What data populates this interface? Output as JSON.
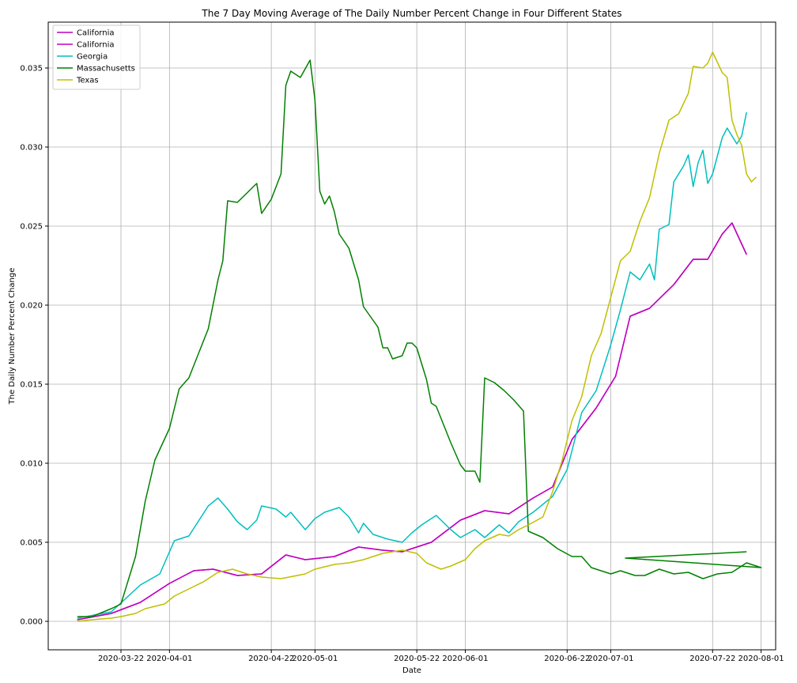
{
  "chart_data": {
    "type": "line",
    "title": "The 7 Day Moving Average of The Daily Number Percent Change in Four Different States",
    "xlabel": "Date",
    "ylabel": "The Daily Number Percent Change",
    "xlim": [
      "2020-03-07",
      "2020-08-04"
    ],
    "ylim": [
      -0.0018,
      0.0379
    ],
    "grid": true,
    "legend_position": "top-left",
    "x_ticks": [
      "2020-03-22",
      "2020-04-01",
      "2020-04-22",
      "2020-05-01",
      "2020-05-22",
      "2020-06-01",
      "2020-06-22",
      "2020-07-01",
      "2020-07-22",
      "2020-08-01"
    ],
    "y_ticks": [
      "0.000",
      "0.005",
      "0.010",
      "0.015",
      "0.020",
      "0.025",
      "0.030",
      "0.035"
    ],
    "series": [
      {
        "name": "California",
        "color": "#bf00bf",
        "points": [
          [
            "2020-03-13",
            0.0001
          ],
          [
            "2020-03-20",
            0.0005
          ],
          [
            "2020-03-26",
            0.0012
          ],
          [
            "2020-04-01",
            0.0024
          ],
          [
            "2020-04-06",
            0.0032
          ],
          [
            "2020-04-10",
            0.0033
          ],
          [
            "2020-04-15",
            0.0029
          ],
          [
            "2020-04-20",
            0.003
          ],
          [
            "2020-04-25",
            0.0042
          ],
          [
            "2020-04-29",
            0.0039
          ],
          [
            "2020-05-05",
            0.0041
          ],
          [
            "2020-05-10",
            0.0047
          ],
          [
            "2020-05-15",
            0.0045
          ],
          [
            "2020-05-19",
            0.0044
          ],
          [
            "2020-05-25",
            0.005
          ],
          [
            "2020-05-31",
            0.0064
          ],
          [
            "2020-06-05",
            0.007
          ],
          [
            "2020-06-10",
            0.0068
          ],
          [
            "2020-06-15",
            0.0078
          ],
          [
            "2020-06-19",
            0.0085
          ],
          [
            "2020-06-23",
            0.0115
          ],
          [
            "2020-06-28",
            0.0135
          ],
          [
            "2020-07-02",
            0.0155
          ],
          [
            "2020-07-05",
            0.0193
          ],
          [
            "2020-07-09",
            0.0198
          ],
          [
            "2020-07-14",
            0.0213
          ],
          [
            "2020-07-18",
            0.0229
          ],
          [
            "2020-07-21",
            0.0229
          ],
          [
            "2020-07-24",
            0.0245
          ],
          [
            "2020-07-26",
            0.0252
          ],
          [
            "2020-07-29",
            0.0232
          ]
        ]
      },
      {
        "name": "California",
        "color": "#bf00bf",
        "points": [
          [
            "2020-03-13",
            0.0001
          ],
          [
            "2020-03-20",
            0.0005
          ],
          [
            "2020-03-26",
            0.0012
          ],
          [
            "2020-04-01",
            0.0024
          ],
          [
            "2020-04-06",
            0.0032
          ],
          [
            "2020-04-10",
            0.0033
          ],
          [
            "2020-04-15",
            0.0029
          ],
          [
            "2020-04-20",
            0.003
          ],
          [
            "2020-04-25",
            0.0042
          ],
          [
            "2020-04-29",
            0.0039
          ],
          [
            "2020-05-05",
            0.0041
          ],
          [
            "2020-05-10",
            0.0047
          ],
          [
            "2020-05-15",
            0.0045
          ],
          [
            "2020-05-19",
            0.0044
          ],
          [
            "2020-05-25",
            0.005
          ],
          [
            "2020-05-31",
            0.0064
          ],
          [
            "2020-06-05",
            0.007
          ],
          [
            "2020-06-10",
            0.0068
          ],
          [
            "2020-06-15",
            0.0078
          ],
          [
            "2020-06-19",
            0.0085
          ],
          [
            "2020-06-23",
            0.0115
          ],
          [
            "2020-06-28",
            0.0135
          ],
          [
            "2020-07-02",
            0.0155
          ],
          [
            "2020-07-05",
            0.0193
          ],
          [
            "2020-07-09",
            0.0198
          ],
          [
            "2020-07-14",
            0.0213
          ],
          [
            "2020-07-18",
            0.0229
          ],
          [
            "2020-07-21",
            0.0229
          ],
          [
            "2020-07-24",
            0.0245
          ],
          [
            "2020-07-26",
            0.0252
          ],
          [
            "2020-07-29",
            0.0232
          ]
        ]
      },
      {
        "name": "Georgia",
        "color": "#00bfbf",
        "points": [
          [
            "2020-03-13",
            0.0002
          ],
          [
            "2020-03-20",
            0.0006
          ],
          [
            "2020-03-26",
            0.0023
          ],
          [
            "2020-03-30",
            0.003
          ],
          [
            "2020-04-02",
            0.0051
          ],
          [
            "2020-04-05",
            0.0054
          ],
          [
            "2020-04-09",
            0.0073
          ],
          [
            "2020-04-11",
            0.0078
          ],
          [
            "2020-04-13",
            0.0071
          ],
          [
            "2020-04-15",
            0.0063
          ],
          [
            "2020-04-17",
            0.0058
          ],
          [
            "2020-04-19",
            0.0064
          ],
          [
            "2020-04-20",
            0.0073
          ],
          [
            "2020-04-23",
            0.0071
          ],
          [
            "2020-04-25",
            0.0066
          ],
          [
            "2020-04-26",
            0.0069
          ],
          [
            "2020-04-29",
            0.0058
          ],
          [
            "2020-05-01",
            0.0065
          ],
          [
            "2020-05-03",
            0.0069
          ],
          [
            "2020-05-06",
            0.0072
          ],
          [
            "2020-05-08",
            0.0066
          ],
          [
            "2020-05-10",
            0.0056
          ],
          [
            "2020-05-11",
            0.0062
          ],
          [
            "2020-05-13",
            0.0055
          ],
          [
            "2020-05-16",
            0.0052
          ],
          [
            "2020-05-19",
            0.005
          ],
          [
            "2020-05-21",
            0.0056
          ],
          [
            "2020-05-23",
            0.0061
          ],
          [
            "2020-05-26",
            0.0067
          ],
          [
            "2020-05-29",
            0.0058
          ],
          [
            "2020-05-31",
            0.0053
          ],
          [
            "2020-06-03",
            0.0058
          ],
          [
            "2020-06-05",
            0.0053
          ],
          [
            "2020-06-08",
            0.0061
          ],
          [
            "2020-06-10",
            0.0056
          ],
          [
            "2020-06-12",
            0.0063
          ],
          [
            "2020-06-15",
            0.0069
          ],
          [
            "2020-06-19",
            0.0079
          ],
          [
            "2020-06-22",
            0.0096
          ],
          [
            "2020-06-25",
            0.0132
          ],
          [
            "2020-06-28",
            0.0146
          ],
          [
            "2020-07-01",
            0.0175
          ],
          [
            "2020-07-03",
            0.0197
          ],
          [
            "2020-07-05",
            0.0221
          ],
          [
            "2020-07-07",
            0.0216
          ],
          [
            "2020-07-09",
            0.0226
          ],
          [
            "2020-07-10",
            0.0216
          ],
          [
            "2020-07-11",
            0.0248
          ],
          [
            "2020-07-13",
            0.0251
          ],
          [
            "2020-07-14",
            0.0278
          ],
          [
            "2020-07-16",
            0.0288
          ],
          [
            "2020-07-17",
            0.0295
          ],
          [
            "2020-07-18",
            0.0275
          ],
          [
            "2020-07-19",
            0.029
          ],
          [
            "2020-07-20",
            0.0298
          ],
          [
            "2020-07-21",
            0.0277
          ],
          [
            "2020-07-22",
            0.0283
          ],
          [
            "2020-07-24",
            0.0306
          ],
          [
            "2020-07-25",
            0.0312
          ],
          [
            "2020-07-27",
            0.0302
          ],
          [
            "2020-07-28",
            0.0307
          ],
          [
            "2020-07-29",
            0.0322
          ]
        ]
      },
      {
        "name": "Massachusetts",
        "color": "#008000",
        "points": [
          [
            "2020-03-13",
            0.0003
          ],
          [
            "2020-03-16",
            0.0003
          ],
          [
            "2020-03-20",
            0.0008
          ],
          [
            "2020-03-22",
            0.0011
          ],
          [
            "2020-03-25",
            0.0041
          ],
          [
            "2020-03-27",
            0.0076
          ],
          [
            "2020-03-29",
            0.0102
          ],
          [
            "2020-04-01",
            0.0122
          ],
          [
            "2020-04-03",
            0.0147
          ],
          [
            "2020-04-05",
            0.0154
          ],
          [
            "2020-04-09",
            0.0185
          ],
          [
            "2020-04-11",
            0.0216
          ],
          [
            "2020-04-12",
            0.0228
          ],
          [
            "2020-04-13",
            0.0266
          ],
          [
            "2020-04-15",
            0.0265
          ],
          [
            "2020-04-17",
            0.0271
          ],
          [
            "2020-04-19",
            0.0277
          ],
          [
            "2020-04-20",
            0.0258
          ],
          [
            "2020-04-22",
            0.0267
          ],
          [
            "2020-04-24",
            0.0283
          ],
          [
            "2020-04-25",
            0.0339
          ],
          [
            "2020-04-26",
            0.0348
          ],
          [
            "2020-04-28",
            0.0344
          ],
          [
            "2020-04-30",
            0.0355
          ],
          [
            "2020-05-01",
            0.033
          ],
          [
            "2020-05-02",
            0.0272
          ],
          [
            "2020-05-03",
            0.0264
          ],
          [
            "2020-05-04",
            0.0269
          ],
          [
            "2020-05-05",
            0.0259
          ],
          [
            "2020-05-06",
            0.0245
          ],
          [
            "2020-05-08",
            0.0236
          ],
          [
            "2020-05-10",
            0.0216
          ],
          [
            "2020-05-11",
            0.0199
          ],
          [
            "2020-05-14",
            0.0186
          ],
          [
            "2020-05-15",
            0.0173
          ],
          [
            "2020-05-16",
            0.0173
          ],
          [
            "2020-05-17",
            0.0166
          ],
          [
            "2020-05-19",
            0.0168
          ],
          [
            "2020-05-20",
            0.0176
          ],
          [
            "2020-05-21",
            0.0176
          ],
          [
            "2020-05-22",
            0.0173
          ],
          [
            "2020-05-24",
            0.0153
          ],
          [
            "2020-05-25",
            0.0138
          ],
          [
            "2020-05-26",
            0.0136
          ],
          [
            "2020-05-29",
            0.0113
          ],
          [
            "2020-05-31",
            0.0099
          ],
          [
            "2020-06-01",
            0.0095
          ],
          [
            "2020-06-03",
            0.0095
          ],
          [
            "2020-06-04",
            0.0088
          ],
          [
            "2020-06-05",
            0.0154
          ],
          [
            "2020-06-07",
            0.0151
          ],
          [
            "2020-06-09",
            0.0146
          ],
          [
            "2020-06-11",
            0.014
          ],
          [
            "2020-06-13",
            0.0133
          ],
          [
            "2020-06-14",
            0.0057
          ],
          [
            "2020-06-17",
            0.0053
          ],
          [
            "2020-06-20",
            0.0046
          ],
          [
            "2020-06-23",
            0.0041
          ],
          [
            "2020-06-25",
            0.0041
          ],
          [
            "2020-06-27",
            0.0034
          ],
          [
            "2020-07-01",
            0.003
          ],
          [
            "2020-07-03",
            0.0032
          ],
          [
            "2020-07-06",
            0.0029
          ],
          [
            "2020-07-08",
            0.0029
          ],
          [
            "2020-07-11",
            0.0033
          ],
          [
            "2020-07-14",
            0.003
          ],
          [
            "2020-07-17",
            0.0031
          ],
          [
            "2020-07-20",
            0.0027
          ],
          [
            "2020-07-23",
            0.003
          ],
          [
            "2020-07-26",
            0.0031
          ],
          [
            "2020-07-29",
            0.0037
          ],
          [
            "2020-08-01",
            0.0034
          ],
          [
            "2020-07-04",
            0.004
          ],
          [
            "2020-07-23",
            0.0043
          ],
          [
            "2020-07-29",
            0.0044
          ]
        ]
      },
      {
        "name": "Texas",
        "color": "#bfbf00",
        "points": [
          [
            "2020-03-13",
            0.0
          ],
          [
            "2020-03-16",
            0.0001
          ],
          [
            "2020-03-20",
            0.0002
          ],
          [
            "2020-03-22",
            0.0003
          ],
          [
            "2020-03-25",
            0.0005
          ],
          [
            "2020-03-27",
            0.0008
          ],
          [
            "2020-03-31",
            0.0011
          ],
          [
            "2020-04-02",
            0.0016
          ],
          [
            "2020-04-06",
            0.0022
          ],
          [
            "2020-04-08",
            0.0025
          ],
          [
            "2020-04-11",
            0.0031
          ],
          [
            "2020-04-14",
            0.0033
          ],
          [
            "2020-04-17",
            0.003
          ],
          [
            "2020-04-20",
            0.0028
          ],
          [
            "2020-04-24",
            0.0027
          ],
          [
            "2020-04-29",
            0.003
          ],
          [
            "2020-05-01",
            0.0033
          ],
          [
            "2020-05-05",
            0.0036
          ],
          [
            "2020-05-08",
            0.0037
          ],
          [
            "2020-05-11",
            0.0039
          ],
          [
            "2020-05-15",
            0.0043
          ],
          [
            "2020-05-19",
            0.0045
          ],
          [
            "2020-05-22",
            0.0043
          ],
          [
            "2020-05-24",
            0.0037
          ],
          [
            "2020-05-27",
            0.0033
          ],
          [
            "2020-05-29",
            0.0035
          ],
          [
            "2020-06-01",
            0.0039
          ],
          [
            "2020-06-03",
            0.0046
          ],
          [
            "2020-06-05",
            0.0051
          ],
          [
            "2020-06-08",
            0.0055
          ],
          [
            "2020-06-10",
            0.0054
          ],
          [
            "2020-06-12",
            0.0058
          ],
          [
            "2020-06-14",
            0.0061
          ],
          [
            "2020-06-17",
            0.0066
          ],
          [
            "2020-06-19",
            0.0082
          ],
          [
            "2020-06-21",
            0.0102
          ],
          [
            "2020-06-23",
            0.0127
          ],
          [
            "2020-06-25",
            0.0142
          ],
          [
            "2020-06-27",
            0.0168
          ],
          [
            "2020-06-29",
            0.0182
          ],
          [
            "2020-07-01",
            0.0205
          ],
          [
            "2020-07-03",
            0.0228
          ],
          [
            "2020-07-05",
            0.0234
          ],
          [
            "2020-07-07",
            0.0253
          ],
          [
            "2020-07-09",
            0.0268
          ],
          [
            "2020-07-11",
            0.0296
          ],
          [
            "2020-07-13",
            0.0317
          ],
          [
            "2020-07-15",
            0.0321
          ],
          [
            "2020-07-17",
            0.0334
          ],
          [
            "2020-07-18",
            0.0351
          ],
          [
            "2020-07-20",
            0.035
          ],
          [
            "2020-07-21",
            0.0353
          ],
          [
            "2020-07-22",
            0.036
          ],
          [
            "2020-07-24",
            0.0347
          ],
          [
            "2020-07-25",
            0.0344
          ],
          [
            "2020-07-26",
            0.0317
          ],
          [
            "2020-07-27",
            0.0308
          ],
          [
            "2020-07-28",
            0.0301
          ],
          [
            "2020-07-29",
            0.0283
          ],
          [
            "2020-07-30",
            0.0278
          ],
          [
            "2020-07-31",
            0.0281
          ]
        ]
      }
    ]
  }
}
